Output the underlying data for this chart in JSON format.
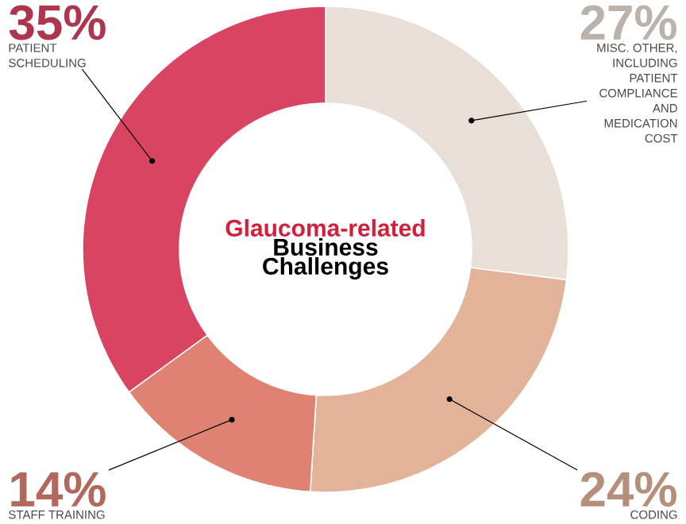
{
  "chart_data": {
    "type": "donut",
    "title": "Glaucoma-related",
    "subtitle": "Business Challenges",
    "categories": [
      "MISC. OTHER, INCLUDING PATIENT COMPLIANCE AND MEDICATION COST",
      "CODING",
      "STAFF TRAINING",
      "PATIENT SCHEDULING"
    ],
    "values": [
      27,
      24,
      14,
      35
    ],
    "value_labels": [
      "27%",
      "24%",
      "14%",
      "35%"
    ],
    "colors": [
      "#e8dfd6",
      "#e3b399",
      "#df8272",
      "#d84462"
    ]
  }
}
